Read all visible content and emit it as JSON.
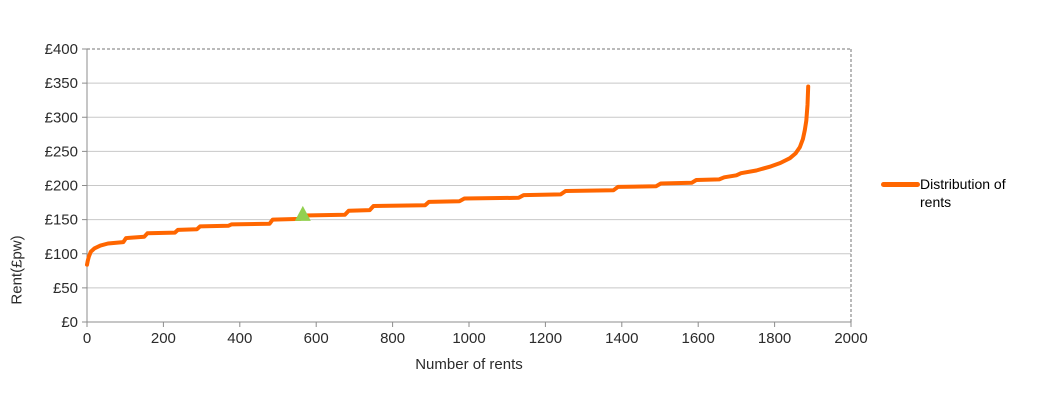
{
  "chart_data": {
    "type": "line",
    "title": "",
    "xlabel": "Number of rents",
    "ylabel": "Rent(£pw)",
    "xlim": [
      0,
      2000
    ],
    "ylim": [
      0,
      400
    ],
    "x_ticks": [
      0,
      200,
      400,
      600,
      800,
      1000,
      1200,
      1400,
      1600,
      1800,
      2000
    ],
    "y_ticks": [
      0,
      50,
      100,
      150,
      200,
      250,
      300,
      350,
      400
    ],
    "y_tick_prefix": "£",
    "grid": true,
    "legend_position": "right",
    "series": [
      {
        "name": "Distribution of rents",
        "color": "#FF6600",
        "points": [
          [
            0,
            84
          ],
          [
            2,
            90
          ],
          [
            5,
            96
          ],
          [
            10,
            103
          ],
          [
            20,
            108
          ],
          [
            35,
            112
          ],
          [
            55,
            115
          ],
          [
            95,
            117
          ],
          [
            102,
            123
          ],
          [
            150,
            125
          ],
          [
            158,
            130
          ],
          [
            230,
            131
          ],
          [
            238,
            135
          ],
          [
            288,
            136
          ],
          [
            296,
            140
          ],
          [
            370,
            141
          ],
          [
            378,
            143
          ],
          [
            478,
            144
          ],
          [
            486,
            150
          ],
          [
            558,
            151
          ],
          [
            566,
            156
          ],
          [
            675,
            157
          ],
          [
            685,
            163
          ],
          [
            740,
            164
          ],
          [
            750,
            170
          ],
          [
            885,
            171
          ],
          [
            895,
            176
          ],
          [
            975,
            177
          ],
          [
            988,
            181
          ],
          [
            1130,
            182
          ],
          [
            1143,
            186
          ],
          [
            1240,
            187
          ],
          [
            1253,
            192
          ],
          [
            1378,
            193
          ],
          [
            1390,
            198
          ],
          [
            1490,
            199
          ],
          [
            1502,
            203
          ],
          [
            1583,
            204
          ],
          [
            1595,
            208
          ],
          [
            1655,
            209
          ],
          [
            1668,
            212
          ],
          [
            1700,
            215
          ],
          [
            1712,
            218
          ],
          [
            1752,
            222
          ],
          [
            1790,
            228
          ],
          [
            1815,
            233
          ],
          [
            1840,
            240
          ],
          [
            1855,
            247
          ],
          [
            1866,
            256
          ],
          [
            1874,
            268
          ],
          [
            1879,
            281
          ],
          [
            1883,
            295
          ],
          [
            1886,
            318
          ],
          [
            1888,
            345
          ]
        ]
      }
    ],
    "marker": {
      "shape": "triangle",
      "x": 565,
      "y": 157,
      "color": "#92D050"
    }
  },
  "legend": {
    "label": "Distribution of rents",
    "line_color": "#FF6600"
  },
  "axes_text": {
    "x_title": "Number of rents",
    "y_title": "Rent(£pw)"
  },
  "colors": {
    "line": "#FF6600",
    "marker": "#92D050",
    "grid": "#C8C8C8",
    "axis": "#8C8C8C",
    "plot_border_dashed": "#767676",
    "tick_text": "#2b2b2b",
    "background": "#FFFFFF"
  }
}
